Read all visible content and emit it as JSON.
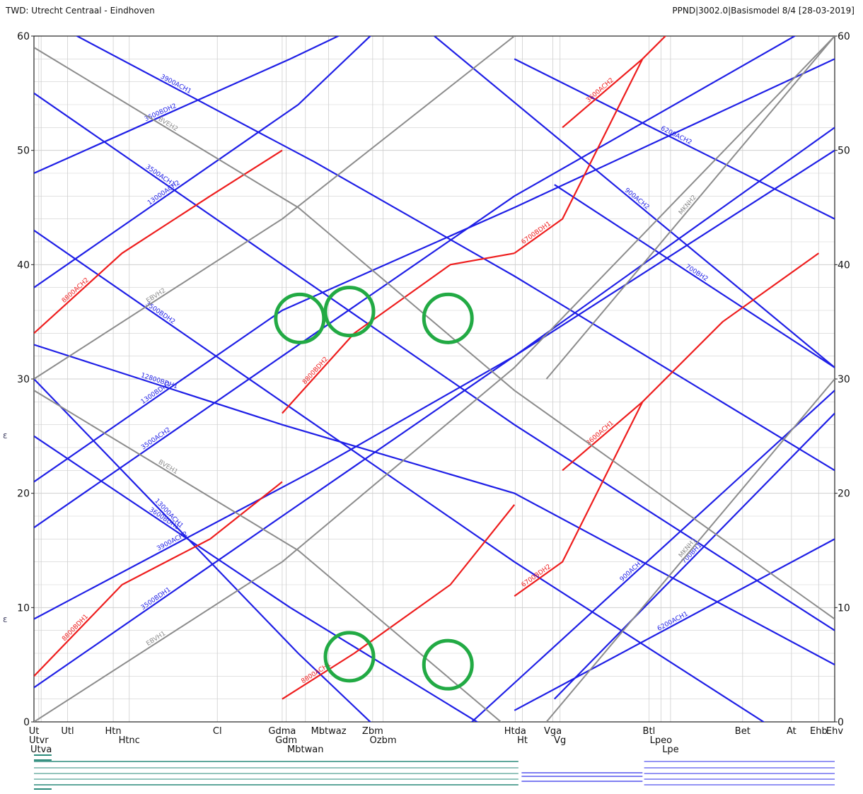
{
  "header": {
    "left": "TWD: Utrecht Centraal - Eindhoven",
    "right": "PPND|3002.0|Basismodel 8/4 [28-03-2019]"
  },
  "colors": {
    "blue": "#1f1fe6",
    "red": "#ee1d1d",
    "gray": "#8c8c8c",
    "grid": "#cfcfcf",
    "highlight": "#22aa44",
    "track_teal": "#2a8a7a",
    "track_blue": "#5555ee"
  },
  "chart_data": {
    "type": "line",
    "title": "TWD: Utrecht Centraal - Eindhoven",
    "ylabel": "",
    "ylim": [
      0,
      60
    ],
    "yticks": [
      0,
      10,
      20,
      30,
      40,
      50,
      60
    ],
    "y_direction": "inverted",
    "grid": true,
    "stations": [
      {
        "code": "Ut",
        "row": 0,
        "km": 0
      },
      {
        "code": "Utvr",
        "row": 1,
        "km": 0.6
      },
      {
        "code": "Utva",
        "row": 2,
        "km": 0.9
      },
      {
        "code": "Utl",
        "row": 0,
        "km": 4.2
      },
      {
        "code": "Htn",
        "row": 0,
        "km": 9.9
      },
      {
        "code": "Htnc",
        "row": 1,
        "km": 11.9
      },
      {
        "code": "Cl",
        "row": 0,
        "km": 22.9
      },
      {
        "code": "Gdma",
        "row": 0,
        "km": 31.0
      },
      {
        "code": "Gdm",
        "row": 1,
        "km": 31.5
      },
      {
        "code": "Mbtwaz",
        "row": 0,
        "km": 36.8
      },
      {
        "code": "Mbtwan",
        "row": 2,
        "km": 33.9
      },
      {
        "code": "Zbm",
        "row": 0,
        "km": 42.3
      },
      {
        "code": "Ozbm",
        "row": 1,
        "km": 43.6
      },
      {
        "code": "Htda",
        "row": 0,
        "km": 60.1
      },
      {
        "code": "Ht",
        "row": 1,
        "km": 61.0
      },
      {
        "code": "Vga",
        "row": 0,
        "km": 64.8
      },
      {
        "code": "Vg",
        "row": 1,
        "km": 65.7
      },
      {
        "code": "Btl",
        "row": 0,
        "km": 76.8
      },
      {
        "code": "Lpeo",
        "row": 1,
        "km": 78.3
      },
      {
        "code": "Lpe",
        "row": 2,
        "km": 79.5
      },
      {
        "code": "Bet",
        "row": 0,
        "km": 88.5
      },
      {
        "code": "At",
        "row": 0,
        "km": 94.6
      },
      {
        "code": "Ehb",
        "row": 0,
        "km": 98.0
      },
      {
        "code": "Ehv",
        "row": 0,
        "km": 100
      }
    ],
    "series": [
      {
        "name": "3500BDH1",
        "color": "blue",
        "points": [
          [
            0,
            3
          ],
          [
            31,
            18
          ],
          [
            60,
            32
          ],
          [
            100,
            50
          ]
        ]
      },
      {
        "name": "3500BDH2",
        "color": "blue",
        "points": [
          [
            0,
            43
          ],
          [
            31,
            28
          ],
          [
            60,
            14
          ],
          [
            100,
            -4
          ]
        ]
      },
      {
        "name": "3500ACH1",
        "color": "blue",
        "points": [
          [
            0,
            55
          ],
          [
            31,
            40
          ],
          [
            60,
            26
          ],
          [
            100,
            8
          ]
        ]
      },
      {
        "name": "3500ACH2",
        "color": "blue",
        "points": [
          [
            0,
            17
          ],
          [
            31,
            32
          ],
          [
            60,
            46
          ],
          [
            100,
            62
          ]
        ]
      },
      {
        "name": "3900ACH1",
        "color": "blue",
        "points": [
          [
            0,
            62
          ],
          [
            35,
            49
          ],
          [
            60,
            39
          ],
          [
            100,
            22
          ]
        ]
      },
      {
        "name": "3900ACH2",
        "color": "blue",
        "points": [
          [
            0,
            9
          ],
          [
            35,
            22
          ],
          [
            60,
            32
          ],
          [
            100,
            52
          ]
        ]
      },
      {
        "name": "12800BDH1",
        "color": "blue",
        "points": [
          [
            0,
            33
          ],
          [
            31,
            26
          ],
          [
            60,
            20
          ],
          [
            100,
            5
          ]
        ]
      },
      {
        "name": "1300BDH2",
        "color": "blue",
        "points": [
          [
            0,
            21
          ],
          [
            31,
            36
          ],
          [
            60,
            45
          ],
          [
            100,
            58
          ]
        ]
      },
      {
        "name": "3600BDH1",
        "color": "blue",
        "points": [
          [
            0,
            25
          ],
          [
            32,
            10
          ],
          [
            60,
            -2
          ]
        ]
      },
      {
        "name": "3600BDH2",
        "color": "blue",
        "points": [
          [
            0,
            48
          ],
          [
            32,
            58
          ],
          [
            50,
            64
          ]
        ]
      },
      {
        "name": "6200ACH1",
        "color": "blue",
        "points": [
          [
            60,
            1
          ],
          [
            100,
            16
          ]
        ]
      },
      {
        "name": "6200ACH2",
        "color": "blue",
        "points": [
          [
            60,
            58
          ],
          [
            100,
            44
          ]
        ]
      },
      {
        "name": "900ACH1",
        "color": "blue",
        "points": [
          [
            50,
            -3
          ],
          [
            100,
            29
          ]
        ]
      },
      {
        "name": "900ACH2",
        "color": "blue",
        "points": [
          [
            50,
            60
          ],
          [
            100,
            31
          ]
        ]
      },
      {
        "name": "700BH1",
        "color": "blue",
        "points": [
          [
            65,
            2
          ],
          [
            100,
            27
          ]
        ]
      },
      {
        "name": "700BH2",
        "color": "blue",
        "points": [
          [
            65,
            47
          ],
          [
            100,
            31
          ]
        ]
      },
      {
        "name": "13000ACH1",
        "color": "blue",
        "points": [
          [
            0,
            30
          ],
          [
            33,
            6
          ],
          [
            45,
            -2
          ]
        ]
      },
      {
        "name": "13000ACH2",
        "color": "blue",
        "points": [
          [
            0,
            38
          ],
          [
            33,
            54
          ],
          [
            45,
            62
          ]
        ]
      },
      {
        "name": "8800BDH1",
        "color": "red",
        "points": [
          [
            0,
            4
          ],
          [
            11,
            12
          ],
          [
            22,
            16
          ],
          [
            31,
            21
          ]
        ]
      },
      {
        "name": "8800BDH2",
        "color": "red",
        "points": [
          [
            31,
            27
          ],
          [
            40,
            34
          ],
          [
            52,
            40
          ],
          [
            60,
            41
          ]
        ]
      },
      {
        "name": "8800ACH1",
        "color": "red",
        "points": [
          [
            31,
            2
          ],
          [
            40,
            6
          ],
          [
            52,
            12
          ],
          [
            60,
            19
          ]
        ]
      },
      {
        "name": "8800ACH2",
        "color": "red",
        "points": [
          [
            0,
            34
          ],
          [
            11,
            41
          ],
          [
            22,
            46
          ],
          [
            31,
            50
          ]
        ]
      },
      {
        "name": "6700BDH1",
        "color": "red",
        "points": [
          [
            60,
            41
          ],
          [
            66,
            44
          ],
          [
            76,
            58
          ]
        ]
      },
      {
        "name": "6700BDH2",
        "color": "red",
        "points": [
          [
            60,
            11
          ],
          [
            66,
            14
          ],
          [
            76,
            28
          ]
        ]
      },
      {
        "name": "3600ACH1",
        "color": "red",
        "points": [
          [
            66,
            22
          ],
          [
            76,
            28
          ],
          [
            86,
            35
          ],
          [
            98,
            41
          ]
        ]
      },
      {
        "name": "3600ACH2",
        "color": "red",
        "points": [
          [
            66,
            52
          ],
          [
            76,
            58
          ],
          [
            86,
            65
          ]
        ]
      },
      {
        "name": "BVEH1",
        "color": "gray",
        "points": [
          [
            0,
            29
          ],
          [
            33,
            15
          ],
          [
            60,
            -1
          ]
        ]
      },
      {
        "name": "BVEH2",
        "color": "gray",
        "points": [
          [
            0,
            59
          ],
          [
            33,
            45
          ],
          [
            60,
            29
          ],
          [
            100,
            9
          ]
        ]
      },
      {
        "name": "MKNH1",
        "color": "gray",
        "points": [
          [
            64,
            0
          ],
          [
            100,
            30
          ]
        ]
      },
      {
        "name": "MKNH2",
        "color": "gray",
        "points": [
          [
            64,
            30
          ],
          [
            100,
            60
          ]
        ]
      },
      {
        "name": "EBVH1",
        "color": "gray",
        "points": [
          [
            0,
            0
          ],
          [
            31,
            14
          ],
          [
            60,
            31
          ],
          [
            100,
            60
          ]
        ]
      },
      {
        "name": "EBVH2",
        "color": "gray",
        "points": [
          [
            0,
            30
          ],
          [
            31,
            44
          ],
          [
            60,
            60
          ]
        ]
      }
    ],
    "highlights": [
      {
        "x": 33.2,
        "y": 35.3
      },
      {
        "x": 39.4,
        "y": 35.9
      },
      {
        "x": 51.7,
        "y": 35.3
      },
      {
        "x": 39.4,
        "y": 5.7
      },
      {
        "x": 51.7,
        "y": 5.0
      }
    ]
  }
}
